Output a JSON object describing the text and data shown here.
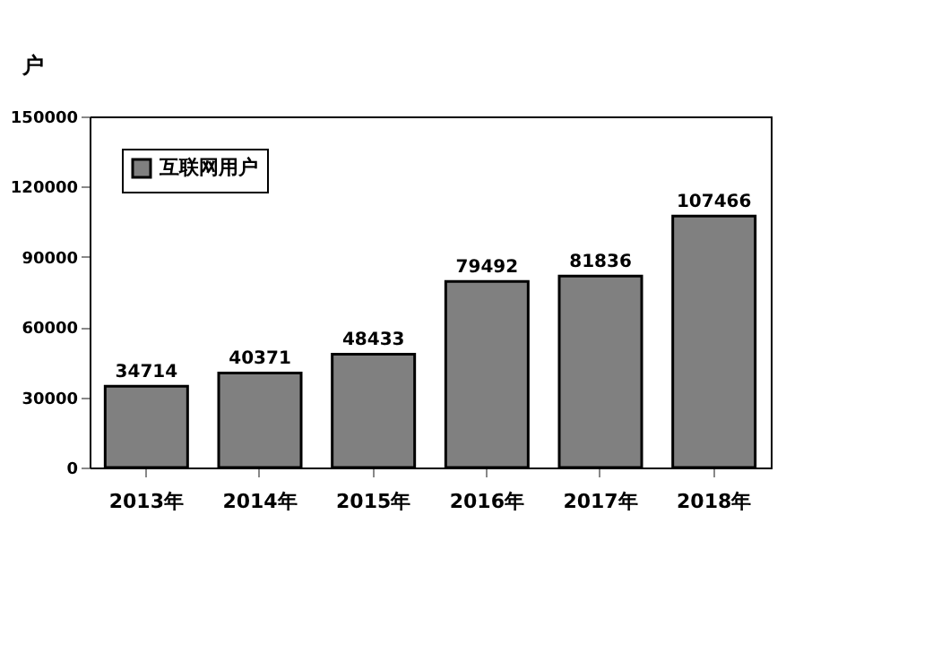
{
  "chart_data": {
    "type": "bar",
    "ylabel": "户",
    "categories": [
      "2013年",
      "2014年",
      "2015年",
      "2016年",
      "2017年",
      "2018年"
    ],
    "series": [
      {
        "name": "互联网用户",
        "color": "#808080",
        "values": [
          34714,
          40371,
          48433,
          79492,
          81836,
          107466
        ]
      }
    ],
    "ylim": [
      0,
      150000
    ],
    "yticks": [
      0,
      30000,
      60000,
      90000,
      120000,
      150000
    ],
    "data_labels": true,
    "legend": "top left",
    "grid": false
  }
}
